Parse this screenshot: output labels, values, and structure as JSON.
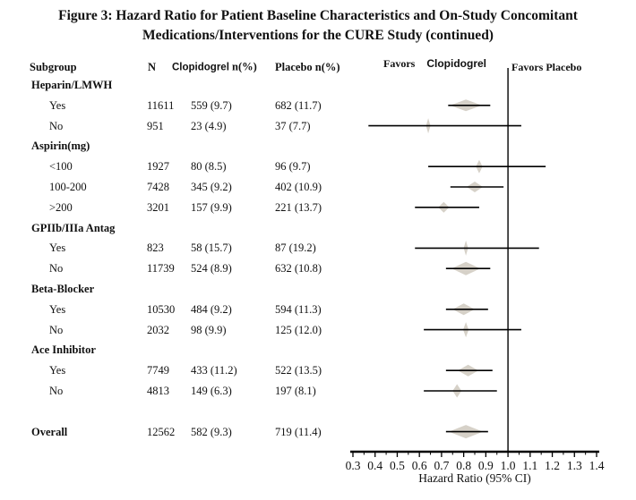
{
  "title": {
    "line1": "Figure 3: Hazard Ratio for Patient Baseline Characteristics and On-Study Concomitant",
    "line2": "Medications/Interventions for the CURE Study (continued)"
  },
  "colors": {
    "diamond": "#d6d1c8",
    "line": "#000000",
    "text": "#111111",
    "background": "#ffffff"
  },
  "chart_data": {
    "type": "forest",
    "columns": {
      "subgroup": "Subgroup",
      "n": "N",
      "clopidogrel_drug": "Clopidogrel",
      "clopidogrel_rest": "n(%)",
      "placebo": "Placebo n(%)"
    },
    "favors": {
      "left_word": "Favors",
      "left_drug": "Clopidogrel",
      "right": "Favors Placebo"
    },
    "xlabel": "Hazard Ratio (95% CI)",
    "xlim": [
      0.3,
      1.4
    ],
    "xticks": [
      0.3,
      0.4,
      0.5,
      0.6,
      0.7,
      0.8,
      0.9,
      1.0,
      1.1,
      1.2,
      1.3,
      1.4
    ],
    "minor_tick_step": 0.05,
    "reference_line": 1.0,
    "grid": false,
    "rows": [
      {
        "kind": "group",
        "label": "Heparin/LMWH"
      },
      {
        "kind": "item",
        "label": "Yes",
        "n": "11611",
        "clopidogrel": "559 (9.7)",
        "placebo": "682 (11.7)",
        "hr": 0.81,
        "ci": [
          0.73,
          0.92
        ],
        "diamond_w": 0.145,
        "diamond_h": 13
      },
      {
        "kind": "item",
        "label": "No",
        "n": "951",
        "clopidogrel": "23 (4.9)",
        "placebo": "37 (7.7)",
        "hr": 0.64,
        "ci": [
          0.37,
          1.06
        ],
        "diamond_w": 0.02,
        "diamond_h": 17
      },
      {
        "kind": "group",
        "label": "Aspirin(mg)"
      },
      {
        "kind": "item",
        "label": "<100",
        "n": "1927",
        "clopidogrel": "80 (8.5)",
        "placebo": "96 (9.7)",
        "hr": 0.87,
        "ci": [
          0.64,
          1.17
        ],
        "diamond_w": 0.03,
        "diamond_h": 15
      },
      {
        "kind": "item",
        "label": "100-200",
        "n": "7428",
        "clopidogrel": "345 (9.2)",
        "placebo": "402 (10.9)",
        "hr": 0.85,
        "ci": [
          0.74,
          0.98
        ],
        "diamond_w": 0.073,
        "diamond_h": 12
      },
      {
        "kind": "item",
        "label": ">200",
        "n": "3201",
        "clopidogrel": "157 (9.9)",
        "placebo": "221 (13.7)",
        "hr": 0.71,
        "ci": [
          0.58,
          0.87
        ],
        "diamond_w": 0.05,
        "diamond_h": 12
      },
      {
        "kind": "group",
        "label": "GPIIb/IIIa Antag"
      },
      {
        "kind": "item",
        "label": "Yes",
        "n": "823",
        "clopidogrel": "58 (15.7)",
        "placebo": "87 (19.2)",
        "hr": 0.81,
        "ci": [
          0.58,
          1.14
        ],
        "diamond_w": 0.02,
        "diamond_h": 17
      },
      {
        "kind": "item",
        "label": "No",
        "n": "11739",
        "clopidogrel": "524 (8.9)",
        "placebo": "632 (10.8)",
        "hr": 0.81,
        "ci": [
          0.72,
          0.92
        ],
        "diamond_w": 0.13,
        "diamond_h": 15
      },
      {
        "kind": "group",
        "label": "Beta-Blocker"
      },
      {
        "kind": "item",
        "label": "Yes",
        "n": "10530",
        "clopidogrel": "484 (9.2)",
        "placebo": "594 (11.3)",
        "hr": 0.8,
        "ci": [
          0.72,
          0.91
        ],
        "diamond_w": 0.1,
        "diamond_h": 13
      },
      {
        "kind": "item",
        "label": "No",
        "n": "2032",
        "clopidogrel": "98 (9.9)",
        "placebo": "125 (12.0)",
        "hr": 0.81,
        "ci": [
          0.62,
          1.06
        ],
        "diamond_w": 0.025,
        "diamond_h": 17
      },
      {
        "kind": "group",
        "label": "Ace Inhibitor"
      },
      {
        "kind": "item",
        "label": "Yes",
        "n": "7749",
        "clopidogrel": "433 (11.2)",
        "placebo": "522 (13.5)",
        "hr": 0.82,
        "ci": [
          0.72,
          0.93
        ],
        "diamond_w": 0.093,
        "diamond_h": 13
      },
      {
        "kind": "item",
        "label": "No",
        "n": "4813",
        "clopidogrel": "149 (6.3)",
        "placebo": "197 (8.1)",
        "hr": 0.77,
        "ci": [
          0.62,
          0.95
        ],
        "diamond_w": 0.04,
        "diamond_h": 15
      },
      {
        "kind": "overall",
        "label": "Overall",
        "gap_before": 1,
        "n": "12562",
        "clopidogrel": "582 (9.3)",
        "placebo": "719 (11.4)",
        "hr": 0.81,
        "ci": [
          0.72,
          0.91
        ],
        "diamond_w": 0.154,
        "diamond_h": 15
      }
    ]
  }
}
